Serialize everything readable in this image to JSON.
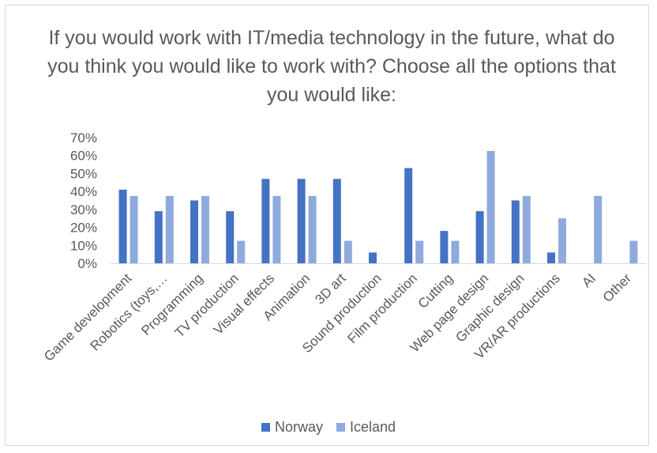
{
  "chart_data": {
    "type": "bar",
    "title": "If you would work with IT/media technology in the future, what do you think you would like to work with? Choose all the options that you would like:",
    "categories": [
      "Game development",
      "Robotics (toys,…",
      "Programming",
      "TV production",
      "Visual effects",
      "Animation",
      "3D art",
      "Sound production",
      "Film production",
      "Cutting",
      "Web page design",
      "Graphic design",
      "VR/AR productions",
      "AI",
      "Other"
    ],
    "series": [
      {
        "name": "Norway",
        "color": "#4472c4",
        "values": [
          41,
          29,
          35,
          29,
          47,
          47,
          47,
          6,
          53,
          18,
          29,
          35,
          6,
          0,
          0
        ]
      },
      {
        "name": "Iceland",
        "color": "#8faadc",
        "values": [
          37.5,
          37.5,
          37.5,
          12.5,
          37.5,
          37.5,
          12.5,
          0,
          12.5,
          12.5,
          62.5,
          37.5,
          25,
          37.5,
          12.5
        ]
      }
    ],
    "yticks": [
      "0%",
      "10%",
      "20%",
      "30%",
      "40%",
      "50%",
      "60%",
      "70%"
    ],
    "ylim": [
      0,
      70
    ],
    "grid": false,
    "legend": "bottom"
  }
}
